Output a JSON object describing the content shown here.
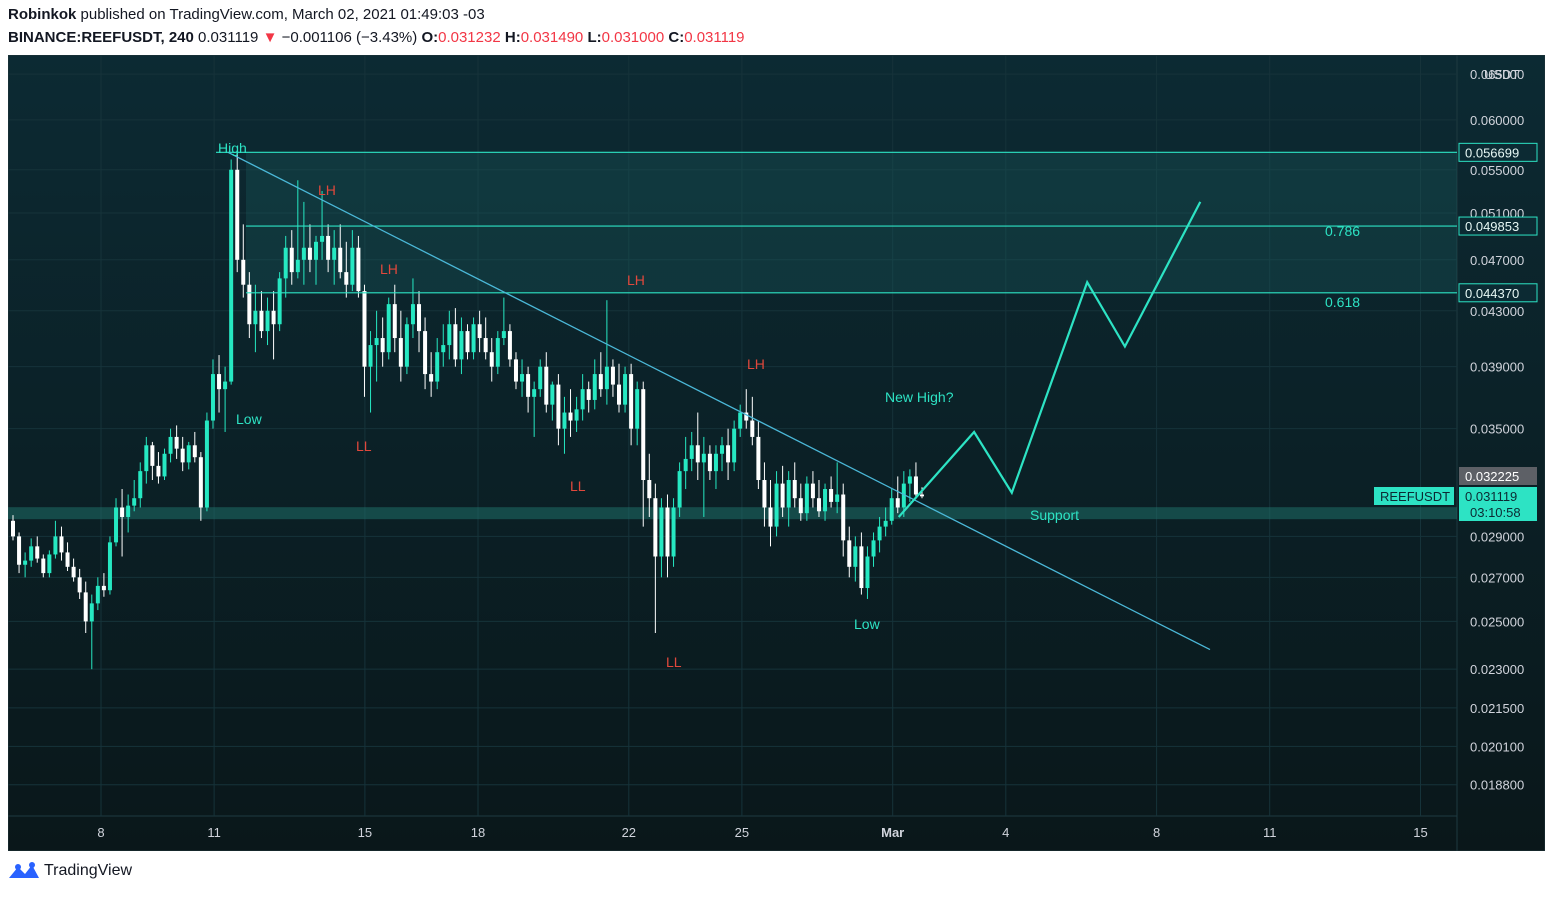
{
  "header": {
    "author": "Robinkok",
    "published": "published on TradingView.com, March 02, 2021 01:49:03 -03",
    "symbol": "BINANCE:REEFUSDT, 240",
    "last": "0.031119",
    "arrow": "▼",
    "change": "−0.001106 (−3.43%)",
    "o_label": "O:",
    "o_val": "0.031232",
    "h_label": "H:",
    "h_val": "0.031490",
    "l_label": "L:",
    "l_val": "0.031000",
    "c_label": "C:",
    "c_val": "0.031119"
  },
  "footer": {
    "brand": "TradingView"
  },
  "colors": {
    "bg_top": "#0c2a33",
    "bg_bottom": "#0a171a",
    "accent": "#2de3c4",
    "up": "#26e8c2",
    "red_label": "#e0483c",
    "trend": "#4bb8d8"
  },
  "chart_data": {
    "type": "candlestick",
    "symbol": "REEFUSDT",
    "currency": "USDT",
    "x_tick_labels": [
      "8",
      "11",
      "15",
      "18",
      "22",
      "25",
      "Mar",
      "4",
      "8",
      "11",
      "15"
    ],
    "y_tick_labels": [
      "0.065000",
      "0.060000",
      "0.055000",
      "0.051000",
      "0.047000",
      "0.043000",
      "0.039000",
      "0.035000",
      "0.029000",
      "0.027000",
      "0.025000",
      "0.023000",
      "0.021500",
      "0.020100",
      "0.018800"
    ],
    "y_ticks": [
      0.065,
      0.06,
      0.055,
      0.051,
      0.047,
      0.043,
      0.039,
      0.035,
      0.029,
      0.027,
      0.025,
      0.023,
      0.0215,
      0.0201,
      0.0188
    ],
    "price_scale": "log",
    "ylim": [
      0.0178,
      0.0672
    ],
    "horizontal_levels": [
      {
        "price": 0.056699,
        "label": "0.056699"
      },
      {
        "price": 0.049853,
        "label": "0.049853",
        "fib": "0.786"
      },
      {
        "price": 0.04437,
        "label": "0.044370",
        "fib": "0.618"
      }
    ],
    "price_badges": [
      {
        "price": 0.032225,
        "label": "0.032225"
      },
      {
        "price": 0.031119,
        "label": "0.031119",
        "symbol": "REEFUSDT",
        "countdown": "03:10:58"
      }
    ],
    "support_zone_price": 0.0302,
    "annotations": [
      {
        "text": "High",
        "color": "green"
      },
      {
        "text": "Low",
        "color": "green"
      },
      {
        "text": "LH",
        "color": "red"
      },
      {
        "text": "LH",
        "color": "red"
      },
      {
        "text": "LL",
        "color": "red"
      },
      {
        "text": "LH",
        "color": "red"
      },
      {
        "text": "LL",
        "color": "red"
      },
      {
        "text": "LH",
        "color": "red"
      },
      {
        "text": "LL",
        "color": "red"
      },
      {
        "text": "Low",
        "color": "green"
      },
      {
        "text": "New High?",
        "color": "green"
      },
      {
        "text": "Support",
        "color": "green"
      }
    ],
    "candles_ohlc": [
      [
        0.0298,
        0.0301,
        0.0288,
        0.029
      ],
      [
        0.029,
        0.0292,
        0.0272,
        0.0276
      ],
      [
        0.0276,
        0.0282,
        0.027,
        0.0278
      ],
      [
        0.0278,
        0.0289,
        0.0275,
        0.0285
      ],
      [
        0.0285,
        0.029,
        0.0277,
        0.0279
      ],
      [
        0.0279,
        0.0281,
        0.027,
        0.0272
      ],
      [
        0.0272,
        0.0283,
        0.027,
        0.0281
      ],
      [
        0.0281,
        0.0298,
        0.0279,
        0.029
      ],
      [
        0.029,
        0.0295,
        0.0278,
        0.0282
      ],
      [
        0.0282,
        0.0287,
        0.0273,
        0.0275
      ],
      [
        0.0275,
        0.0279,
        0.0268,
        0.027
      ],
      [
        0.027,
        0.0274,
        0.026,
        0.0263
      ],
      [
        0.0263,
        0.0268,
        0.0245,
        0.025
      ],
      [
        0.025,
        0.0262,
        0.023,
        0.0258
      ],
      [
        0.0258,
        0.027,
        0.0255,
        0.0266
      ],
      [
        0.0266,
        0.0272,
        0.0261,
        0.0264
      ],
      [
        0.0264,
        0.029,
        0.0262,
        0.0287
      ],
      [
        0.0287,
        0.031,
        0.0285,
        0.0305
      ],
      [
        0.0305,
        0.0315,
        0.028,
        0.03
      ],
      [
        0.03,
        0.0312,
        0.0292,
        0.0306
      ],
      [
        0.0306,
        0.032,
        0.0303,
        0.031
      ],
      [
        0.031,
        0.033,
        0.0305,
        0.0325
      ],
      [
        0.0325,
        0.0345,
        0.0318,
        0.034
      ],
      [
        0.034,
        0.0342,
        0.032,
        0.0328
      ],
      [
        0.0328,
        0.0336,
        0.0318,
        0.0322
      ],
      [
        0.0322,
        0.0338,
        0.032,
        0.0335
      ],
      [
        0.0335,
        0.035,
        0.033,
        0.0345
      ],
      [
        0.0345,
        0.0352,
        0.0332,
        0.0338
      ],
      [
        0.0338,
        0.0345,
        0.0325,
        0.033
      ],
      [
        0.033,
        0.0342,
        0.0326,
        0.034
      ],
      [
        0.034,
        0.0348,
        0.033,
        0.0333
      ],
      [
        0.0333,
        0.0336,
        0.0298,
        0.0305
      ],
      [
        0.0305,
        0.036,
        0.0303,
        0.0355
      ],
      [
        0.0355,
        0.0395,
        0.035,
        0.0385
      ],
      [
        0.0385,
        0.0398,
        0.036,
        0.0375
      ],
      [
        0.0375,
        0.039,
        0.0348,
        0.038
      ],
      [
        0.038,
        0.056,
        0.0378,
        0.055
      ],
      [
        0.055,
        0.0567,
        0.046,
        0.047
      ],
      [
        0.047,
        0.05,
        0.044,
        0.045
      ],
      [
        0.045,
        0.046,
        0.041,
        0.042
      ],
      [
        0.042,
        0.045,
        0.04,
        0.043
      ],
      [
        0.043,
        0.0445,
        0.041,
        0.0415
      ],
      [
        0.0415,
        0.044,
        0.0405,
        0.043
      ],
      [
        0.043,
        0.0445,
        0.0395,
        0.042
      ],
      [
        0.042,
        0.046,
        0.0415,
        0.0455
      ],
      [
        0.0455,
        0.049,
        0.044,
        0.048
      ],
      [
        0.048,
        0.0495,
        0.045,
        0.046
      ],
      [
        0.046,
        0.054,
        0.0455,
        0.047
      ],
      [
        0.047,
        0.052,
        0.045,
        0.048
      ],
      [
        0.048,
        0.05,
        0.046,
        0.047
      ],
      [
        0.047,
        0.049,
        0.045,
        0.0485
      ],
      [
        0.0485,
        0.053,
        0.047,
        0.049
      ],
      [
        0.049,
        0.05,
        0.046,
        0.047
      ],
      [
        0.047,
        0.0495,
        0.045,
        0.048
      ],
      [
        0.048,
        0.05,
        0.0455,
        0.046
      ],
      [
        0.046,
        0.0485,
        0.044,
        0.045
      ],
      [
        0.045,
        0.0495,
        0.0445,
        0.048
      ],
      [
        0.048,
        0.049,
        0.044,
        0.0445
      ],
      [
        0.0445,
        0.045,
        0.037,
        0.039
      ],
      [
        0.039,
        0.0415,
        0.036,
        0.0405
      ],
      [
        0.0405,
        0.043,
        0.038,
        0.041
      ],
      [
        0.041,
        0.0425,
        0.039,
        0.04
      ],
      [
        0.04,
        0.044,
        0.0395,
        0.0435
      ],
      [
        0.0435,
        0.045,
        0.04,
        0.041
      ],
      [
        0.041,
        0.043,
        0.038,
        0.039
      ],
      [
        0.039,
        0.0425,
        0.0385,
        0.042
      ],
      [
        0.042,
        0.0455,
        0.041,
        0.0435
      ],
      [
        0.0435,
        0.0445,
        0.04,
        0.0415
      ],
      [
        0.0415,
        0.0425,
        0.0375,
        0.0385
      ],
      [
        0.0385,
        0.04,
        0.037,
        0.038
      ],
      [
        0.038,
        0.041,
        0.0375,
        0.04
      ],
      [
        0.04,
        0.042,
        0.039,
        0.0405
      ],
      [
        0.0405,
        0.043,
        0.0395,
        0.042
      ],
      [
        0.042,
        0.0432,
        0.039,
        0.0395
      ],
      [
        0.0395,
        0.0425,
        0.0385,
        0.0415
      ],
      [
        0.0415,
        0.042,
        0.0395,
        0.04
      ],
      [
        0.04,
        0.0425,
        0.0395,
        0.042
      ],
      [
        0.042,
        0.043,
        0.04,
        0.041
      ],
      [
        0.041,
        0.0425,
        0.0395,
        0.04
      ],
      [
        0.04,
        0.041,
        0.038,
        0.039
      ],
      [
        0.039,
        0.0415,
        0.0385,
        0.041
      ],
      [
        0.041,
        0.044,
        0.0405,
        0.0415
      ],
      [
        0.0415,
        0.042,
        0.039,
        0.0395
      ],
      [
        0.0395,
        0.04,
        0.0375,
        0.038
      ],
      [
        0.038,
        0.0395,
        0.037,
        0.0385
      ],
      [
        0.0385,
        0.039,
        0.036,
        0.037
      ],
      [
        0.037,
        0.038,
        0.0345,
        0.0375
      ],
      [
        0.0375,
        0.0395,
        0.037,
        0.039
      ],
      [
        0.039,
        0.04,
        0.036,
        0.0365
      ],
      [
        0.0365,
        0.038,
        0.0355,
        0.0378
      ],
      [
        0.0378,
        0.0385,
        0.034,
        0.035
      ],
      [
        0.035,
        0.037,
        0.0335,
        0.036
      ],
      [
        0.036,
        0.0375,
        0.0345,
        0.0355
      ],
      [
        0.0355,
        0.037,
        0.0348,
        0.0362
      ],
      [
        0.0362,
        0.0385,
        0.0355,
        0.0375
      ],
      [
        0.0375,
        0.038,
        0.036,
        0.0368
      ],
      [
        0.0368,
        0.0395,
        0.0362,
        0.0385
      ],
      [
        0.0385,
        0.04,
        0.037,
        0.0375
      ],
      [
        0.0375,
        0.0438,
        0.0365,
        0.039
      ],
      [
        0.039,
        0.0395,
        0.037,
        0.0378
      ],
      [
        0.0378,
        0.0392,
        0.036,
        0.0365
      ],
      [
        0.0365,
        0.039,
        0.036,
        0.0385
      ],
      [
        0.0385,
        0.0392,
        0.034,
        0.035
      ],
      [
        0.035,
        0.038,
        0.034,
        0.0375
      ],
      [
        0.0375,
        0.038,
        0.0295,
        0.032
      ],
      [
        0.032,
        0.0335,
        0.03,
        0.031
      ],
      [
        0.031,
        0.0318,
        0.0245,
        0.028
      ],
      [
        0.028,
        0.031,
        0.027,
        0.0305
      ],
      [
        0.0305,
        0.0312,
        0.027,
        0.028
      ],
      [
        0.028,
        0.031,
        0.0275,
        0.0305
      ],
      [
        0.0305,
        0.033,
        0.03,
        0.0325
      ],
      [
        0.0325,
        0.0345,
        0.0315,
        0.0332
      ],
      [
        0.0332,
        0.0348,
        0.0325,
        0.034
      ],
      [
        0.034,
        0.036,
        0.032,
        0.033
      ],
      [
        0.033,
        0.0345,
        0.03,
        0.0335
      ],
      [
        0.0335,
        0.034,
        0.032,
        0.0325
      ],
      [
        0.0325,
        0.034,
        0.0315,
        0.0335
      ],
      [
        0.0335,
        0.0345,
        0.0325,
        0.034
      ],
      [
        0.034,
        0.035,
        0.032,
        0.033
      ],
      [
        0.033,
        0.0355,
        0.0325,
        0.035
      ],
      [
        0.035,
        0.0365,
        0.0345,
        0.036
      ],
      [
        0.036,
        0.0375,
        0.035,
        0.0355
      ],
      [
        0.0355,
        0.037,
        0.034,
        0.0345
      ],
      [
        0.0345,
        0.0355,
        0.0315,
        0.032
      ],
      [
        0.032,
        0.033,
        0.0295,
        0.0305
      ],
      [
        0.0305,
        0.032,
        0.0285,
        0.0295
      ],
      [
        0.0295,
        0.0325,
        0.029,
        0.0318
      ],
      [
        0.0318,
        0.0328,
        0.03,
        0.0305
      ],
      [
        0.0305,
        0.0325,
        0.0295,
        0.032
      ],
      [
        0.032,
        0.033,
        0.0305,
        0.031
      ],
      [
        0.031,
        0.0318,
        0.0298,
        0.0302
      ],
      [
        0.0302,
        0.0322,
        0.0298,
        0.0318
      ],
      [
        0.0318,
        0.0325,
        0.0305,
        0.031
      ],
      [
        0.031,
        0.032,
        0.03,
        0.0303
      ],
      [
        0.0303,
        0.0318,
        0.0298,
        0.0315
      ],
      [
        0.0315,
        0.0322,
        0.0305,
        0.0308
      ],
      [
        0.0308,
        0.033,
        0.0302,
        0.0312
      ],
      [
        0.0312,
        0.0318,
        0.028,
        0.0288
      ],
      [
        0.0288,
        0.0295,
        0.027,
        0.0275
      ],
      [
        0.0275,
        0.029,
        0.0268,
        0.0285
      ],
      [
        0.0285,
        0.0292,
        0.0262,
        0.0265
      ],
      [
        0.0265,
        0.0285,
        0.026,
        0.028
      ],
      [
        0.028,
        0.0292,
        0.0275,
        0.0288
      ],
      [
        0.0288,
        0.03,
        0.0282,
        0.0295
      ],
      [
        0.0295,
        0.0305,
        0.029,
        0.0298
      ],
      [
        0.0298,
        0.0315,
        0.0296,
        0.031
      ],
      [
        0.031,
        0.0322,
        0.0302,
        0.0305
      ],
      [
        0.0305,
        0.0325,
        0.03,
        0.0318
      ],
      [
        0.0318,
        0.0326,
        0.0308,
        0.0322
      ],
      [
        0.0322,
        0.033,
        0.031,
        0.0312
      ],
      [
        0.0312,
        0.0316,
        0.031,
        0.0311
      ]
    ],
    "projection_path": [
      {
        "date": "Mar 1",
        "price": 0.03
      },
      {
        "date": "Mar 3",
        "price": 0.0348
      },
      {
        "date": "Mar 4",
        "price": 0.0313
      },
      {
        "date": "Mar 6",
        "price": 0.0452
      },
      {
        "date": "Mar 7",
        "price": 0.0404
      },
      {
        "date": "Mar 9",
        "price": 0.052
      }
    ]
  }
}
